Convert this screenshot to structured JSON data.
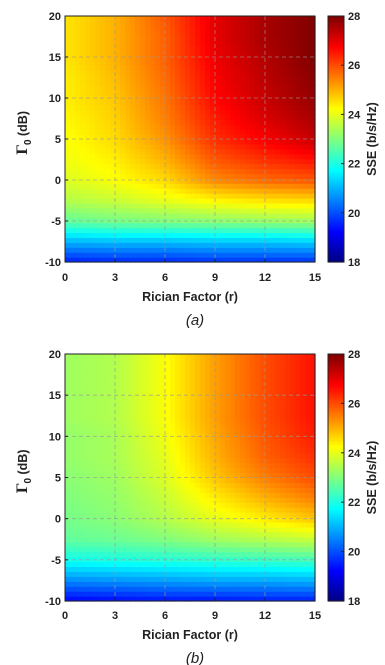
{
  "chart_data": [
    {
      "type": "heatmap",
      "caption": "(a)",
      "xlabel": "Rician Factor (r)",
      "ylabel_symbol": "Γ",
      "ylabel_sub": "0",
      "ylabel_rest": " (dB)",
      "colorbar_label": "SSE (b/s/Hz)",
      "x_ticks": [
        0,
        3,
        6,
        9,
        12,
        15
      ],
      "y_ticks": [
        -10,
        -5,
        0,
        5,
        10,
        15,
        20
      ],
      "colorbar_ticks": [
        18,
        20,
        22,
        24,
        26,
        28
      ],
      "xlim": [
        0,
        15
      ],
      "ylim": [
        -10,
        20
      ],
      "clim": [
        18,
        28
      ],
      "colormap": "jet",
      "grid": true,
      "x": [
        0,
        3,
        6,
        9,
        12,
        15
      ],
      "y": [
        -10,
        -7.5,
        -5,
        -2.5,
        0,
        2.5,
        5,
        7.5,
        10,
        12.5,
        15,
        17.5,
        20
      ],
      "z": [
        [
          19.5,
          19.6,
          19.6,
          19.7,
          19.7,
          19.7
        ],
        [
          21.0,
          21.1,
          21.1,
          21.2,
          21.2,
          21.3
        ],
        [
          22.7,
          22.9,
          23.0,
          23.1,
          23.2,
          23.3
        ],
        [
          23.5,
          23.7,
          24.0,
          24.3,
          24.5,
          24.6
        ],
        [
          23.9,
          24.2,
          24.6,
          25.4,
          25.7,
          25.9
        ],
        [
          24.1,
          24.4,
          25.0,
          25.9,
          26.3,
          26.6
        ],
        [
          24.2,
          24.6,
          25.3,
          26.3,
          26.8,
          27.3
        ],
        [
          24.3,
          24.7,
          25.5,
          26.5,
          27.1,
          27.6
        ],
        [
          24.4,
          24.8,
          25.6,
          26.7,
          27.3,
          27.8
        ],
        [
          24.4,
          24.9,
          25.7,
          26.8,
          27.4,
          27.9
        ],
        [
          24.5,
          25.0,
          25.8,
          26.9,
          27.5,
          28.0
        ],
        [
          24.5,
          25.0,
          25.8,
          27.0,
          27.6,
          28.0
        ],
        [
          24.5,
          25.0,
          25.9,
          27.0,
          27.6,
          28.0
        ]
      ]
    },
    {
      "type": "heatmap",
      "caption": "(b)",
      "xlabel": "Rician Factor (r)",
      "ylabel_symbol": "Γ",
      "ylabel_sub": "0",
      "ylabel_rest": " (dB)",
      "colorbar_label": "SSE (b/s/Hz)",
      "x_ticks": [
        0,
        3,
        6,
        9,
        12,
        15
      ],
      "y_ticks": [
        -10,
        -5,
        0,
        5,
        10,
        15,
        20
      ],
      "colorbar_ticks": [
        18,
        20,
        22,
        24,
        26,
        28
      ],
      "xlim": [
        0,
        15
      ],
      "ylim": [
        -10,
        20
      ],
      "clim": [
        18,
        28
      ],
      "colormap": "jet",
      "grid": true,
      "x": [
        0,
        3,
        6,
        9,
        12,
        15
      ],
      "y": [
        -10,
        -7.5,
        -5,
        -2.5,
        0,
        2.5,
        5,
        7.5,
        10,
        12.5,
        15,
        17.5,
        20
      ],
      "z": [
        [
          19.2,
          19.3,
          19.4,
          19.4,
          19.5,
          19.5
        ],
        [
          20.6,
          20.7,
          20.8,
          20.9,
          20.9,
          21.0
        ],
        [
          21.9,
          22.0,
          22.1,
          22.2,
          22.3,
          22.4
        ],
        [
          22.7,
          22.8,
          23.0,
          23.3,
          23.5,
          23.7
        ],
        [
          22.9,
          23.1,
          23.5,
          24.0,
          24.4,
          24.8
        ],
        [
          23.0,
          23.2,
          23.7,
          24.4,
          25.0,
          25.5
        ],
        [
          23.1,
          23.3,
          23.9,
          24.8,
          25.5,
          26.0
        ],
        [
          23.2,
          23.4,
          24.0,
          25.0,
          25.8,
          26.3
        ],
        [
          23.2,
          23.4,
          24.1,
          25.1,
          25.9,
          26.5
        ],
        [
          23.3,
          23.5,
          24.2,
          25.2,
          26.0,
          26.6
        ],
        [
          23.3,
          23.5,
          24.2,
          25.2,
          26.0,
          26.6
        ],
        [
          23.3,
          23.5,
          24.2,
          25.2,
          26.0,
          26.6
        ],
        [
          23.3,
          23.5,
          24.2,
          25.2,
          26.0,
          26.6
        ]
      ]
    }
  ]
}
